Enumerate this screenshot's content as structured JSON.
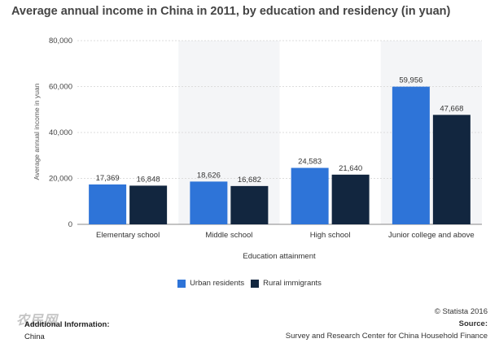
{
  "title": "Average annual income in China in 2011, by education and residency (in yuan)",
  "chart_data": {
    "type": "bar",
    "categories": [
      "Elementary school",
      "Middle school",
      "High school",
      "Junior college and above"
    ],
    "series": [
      {
        "name": "Urban residents",
        "values": [
          17369,
          18626,
          24583,
          59956
        ],
        "labels": [
          "17,369",
          "18,626",
          "24,583",
          "59,956"
        ],
        "color": "#2e74d8"
      },
      {
        "name": "Rural immigrants",
        "values": [
          16848,
          16682,
          21640,
          47668
        ],
        "labels": [
          "16,848",
          "16,682",
          "21,640",
          "47,668"
        ],
        "color": "#12263f"
      }
    ],
    "ylim": [
      0,
      80000
    ],
    "yticks": [
      0,
      20000,
      40000,
      60000,
      80000
    ],
    "ytick_labels": [
      "0",
      "20,000",
      "40,000",
      "60,000",
      "80,000"
    ],
    "xlabel": "Education attainment",
    "ylabel": "Average annual income in yuan",
    "grid": true,
    "legend": "bottom"
  },
  "footer": {
    "statista": "© Statista 2016",
    "source_label": "Source:",
    "source_text": "Survey and Research Center for China Household Finance",
    "additional_label": "Additional Information:",
    "additional_text": "China",
    "watermark": "农民网"
  }
}
